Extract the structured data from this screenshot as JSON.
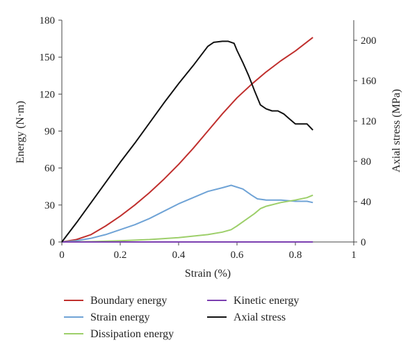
{
  "chart_data": {
    "type": "line",
    "xlabel": "Strain (%)",
    "ylabel_left": "Energy (N·m)",
    "ylabel_right": "Axial stress (MPa)",
    "xlim": [
      0,
      1
    ],
    "ylim_left": [
      0,
      180
    ],
    "ylim_right": [
      0,
      220
    ],
    "x_ticks": [
      "0",
      "0.2",
      "0.4",
      "0.6",
      "0.8",
      "1"
    ],
    "y_left_ticks": [
      "0",
      "30",
      "60",
      "90",
      "120",
      "150",
      "180"
    ],
    "y_right_ticks": [
      "0",
      "40",
      "80",
      "120",
      "160",
      "200"
    ],
    "grid": false,
    "legend_position": "bottom",
    "series": [
      {
        "name": "Boundary energy",
        "axis": "left",
        "color": "#c0302e",
        "points": [
          [
            0,
            0
          ],
          [
            0.05,
            2
          ],
          [
            0.1,
            6
          ],
          [
            0.15,
            13
          ],
          [
            0.2,
            21
          ],
          [
            0.25,
            30
          ],
          [
            0.3,
            40
          ],
          [
            0.35,
            51
          ],
          [
            0.4,
            63
          ],
          [
            0.45,
            76
          ],
          [
            0.5,
            90
          ],
          [
            0.55,
            104
          ],
          [
            0.6,
            117
          ],
          [
            0.65,
            128
          ],
          [
            0.7,
            138
          ],
          [
            0.75,
            147
          ],
          [
            0.8,
            155
          ],
          [
            0.86,
            166
          ]
        ]
      },
      {
        "name": "Strain energy",
        "axis": "left",
        "color": "#6fa3d6",
        "points": [
          [
            0,
            0
          ],
          [
            0.05,
            1
          ],
          [
            0.1,
            3
          ],
          [
            0.15,
            6
          ],
          [
            0.2,
            10
          ],
          [
            0.25,
            14
          ],
          [
            0.3,
            19
          ],
          [
            0.35,
            25
          ],
          [
            0.4,
            31
          ],
          [
            0.45,
            36
          ],
          [
            0.5,
            41
          ],
          [
            0.55,
            44
          ],
          [
            0.58,
            46
          ],
          [
            0.62,
            43
          ],
          [
            0.65,
            38
          ],
          [
            0.67,
            35
          ],
          [
            0.7,
            34
          ],
          [
            0.75,
            34
          ],
          [
            0.8,
            33
          ],
          [
            0.84,
            33
          ],
          [
            0.86,
            32
          ]
        ]
      },
      {
        "name": "Dissipation energy",
        "axis": "left",
        "color": "#9dcf6a",
        "points": [
          [
            0,
            0
          ],
          [
            0.1,
            0.3
          ],
          [
            0.2,
            1
          ],
          [
            0.3,
            2
          ],
          [
            0.4,
            3.5
          ],
          [
            0.5,
            6
          ],
          [
            0.55,
            8
          ],
          [
            0.58,
            10
          ],
          [
            0.6,
            13
          ],
          [
            0.63,
            18
          ],
          [
            0.66,
            23
          ],
          [
            0.68,
            27
          ],
          [
            0.7,
            29
          ],
          [
            0.75,
            32
          ],
          [
            0.8,
            34
          ],
          [
            0.84,
            36
          ],
          [
            0.86,
            38
          ]
        ]
      },
      {
        "name": "Kinetic energy",
        "axis": "left",
        "color": "#7b3fb0",
        "points": [
          [
            0,
            0
          ],
          [
            0.86,
            0
          ]
        ]
      },
      {
        "name": "Axial stress",
        "axis": "right",
        "color": "#111111",
        "points": [
          [
            0,
            0
          ],
          [
            0.05,
            19
          ],
          [
            0.1,
            39
          ],
          [
            0.15,
            59
          ],
          [
            0.2,
            79
          ],
          [
            0.25,
            98
          ],
          [
            0.3,
            118
          ],
          [
            0.35,
            138
          ],
          [
            0.4,
            157
          ],
          [
            0.45,
            175
          ],
          [
            0.5,
            194
          ],
          [
            0.52,
            198
          ],
          [
            0.55,
            199
          ],
          [
            0.57,
            199
          ],
          [
            0.59,
            197
          ],
          [
            0.6,
            190
          ],
          [
            0.62,
            178
          ],
          [
            0.64,
            165
          ],
          [
            0.66,
            150
          ],
          [
            0.68,
            136
          ],
          [
            0.7,
            132
          ],
          [
            0.72,
            130
          ],
          [
            0.74,
            130
          ],
          [
            0.76,
            127
          ],
          [
            0.78,
            122
          ],
          [
            0.8,
            117
          ],
          [
            0.82,
            117
          ],
          [
            0.84,
            117
          ],
          [
            0.86,
            111
          ]
        ]
      }
    ]
  }
}
